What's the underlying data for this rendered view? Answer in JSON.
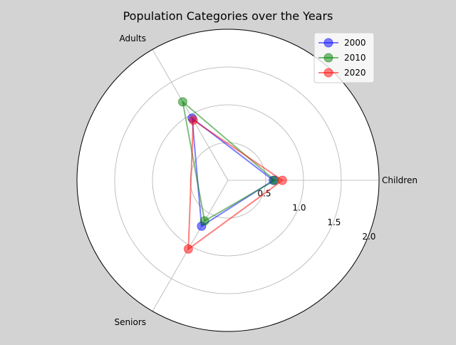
{
  "chart_data": {
    "type": "radar",
    "title": "Population Categories over the Years",
    "categories": [
      "Children",
      "Adults",
      "Seniors"
    ],
    "radial_ticks": [
      "0.5",
      "1.0",
      "1.5",
      "2.0"
    ],
    "radial_tick_values": [
      0.5,
      1.0,
      1.5,
      2.0
    ],
    "rlim": [
      0,
      2.0
    ],
    "grid": true,
    "legend_position": "top-right",
    "series": [
      {
        "name": "2000",
        "color": "#0000ff",
        "values": [
          0.6,
          0.95,
          0.7
        ]
      },
      {
        "name": "2010",
        "color": "#008000",
        "values": [
          0.62,
          1.2,
          0.62
        ]
      },
      {
        "name": "2020",
        "color": "#ff0000",
        "values": [
          0.72,
          0.92,
          1.05
        ]
      }
    ]
  }
}
